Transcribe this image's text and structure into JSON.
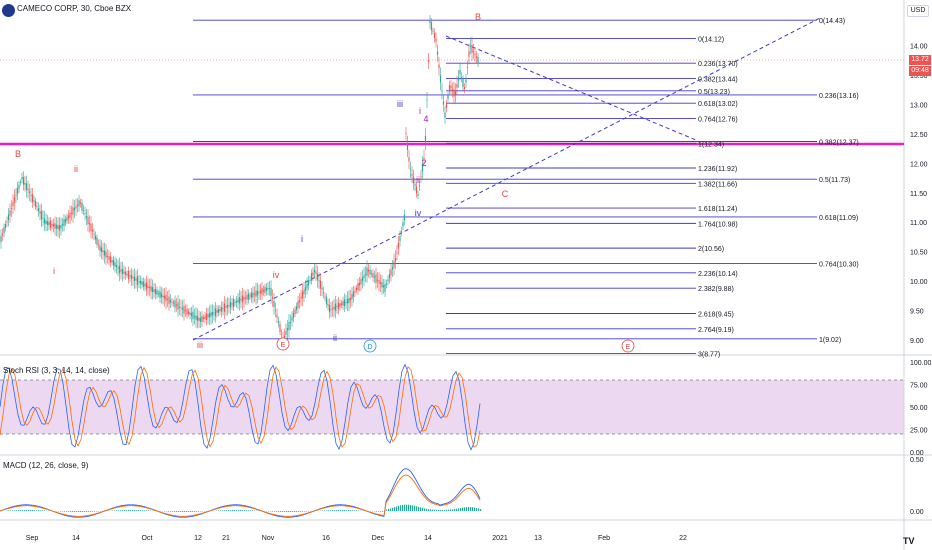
{
  "header": {
    "title": "CAMECO CORP, 30, Cboe BZX",
    "currency": "USD"
  },
  "price_axis": {
    "ticks": [
      "14.00",
      "13.50",
      "13.00",
      "12.50",
      "12.00",
      "11.50",
      "11.00",
      "10.50",
      "10.00",
      "9.50",
      "9.00"
    ],
    "last_price": "13.72",
    "countdown": "09:48"
  },
  "time_axis": {
    "labels": [
      "Sep",
      "14",
      "Oct",
      "12",
      "21",
      "Nov",
      "16",
      "Dec",
      "14",
      "2021",
      "13",
      "Feb",
      "22"
    ]
  },
  "indicators": {
    "stoch_rsi": {
      "label": "Stoch RSI (3, 3, 14, 14, close)",
      "ticks": [
        "100.00",
        "75.00",
        "50.00",
        "25.00",
        "0.00"
      ],
      "band": [
        20,
        80
      ]
    },
    "macd": {
      "label": "MACD (12, 26, close, 9)",
      "ticks": [
        "0.50",
        "0.00"
      ]
    }
  },
  "fib_short": [
    {
      "text": "0(14.12)",
      "price": 14.12
    },
    {
      "text": "0.236(13.70)",
      "price": 13.7
    },
    {
      "text": "0.382(13.44)",
      "price": 13.44
    },
    {
      "text": "0.5(13.23)",
      "price": 13.23
    },
    {
      "text": "0.618(13.02)",
      "price": 13.02
    },
    {
      "text": "0.764(12.76)",
      "price": 12.76
    },
    {
      "text": "1(12.34)",
      "price": 12.34
    },
    {
      "text": "1.236(11.92)",
      "price": 11.92
    },
    {
      "text": "1.382(11.66)",
      "price": 11.66
    },
    {
      "text": "1.618(11.24)",
      "price": 11.24
    },
    {
      "text": "1.764(10.98)",
      "price": 10.98
    },
    {
      "text": "2(10.56)",
      "price": 10.56
    },
    {
      "text": "2.236(10.14)",
      "price": 10.14
    },
    {
      "text": "2.382(9.88)",
      "price": 9.88
    },
    {
      "text": "2.618(9.45)",
      "price": 9.45
    },
    {
      "text": "2.764(9.19)",
      "price": 9.19
    },
    {
      "text": "3(8.77)",
      "price": 8.77
    }
  ],
  "fib_long": [
    {
      "text": "0(14.43)",
      "price": 14.43
    },
    {
      "text": "0.236(13.16)",
      "price": 13.16
    },
    {
      "text": "0.382(12.37)",
      "price": 12.37
    },
    {
      "text": "0.5(11.73)",
      "price": 11.73
    },
    {
      "text": "0.618(11.09)",
      "price": 11.09
    },
    {
      "text": "0.764(10.30)",
      "price": 10.3
    },
    {
      "text": "1(9.02)",
      "price": 9.02
    }
  ],
  "wave_labels": [
    {
      "text": "B",
      "color": "#e0463c"
    },
    {
      "text": "ii",
      "color": "#e0463c"
    },
    {
      "text": "i",
      "color": "#e0463c"
    },
    {
      "text": "iii",
      "color": "#e0463c"
    },
    {
      "text": "iv",
      "color": "#e0463c"
    },
    {
      "text": "E",
      "color": "#e0463c"
    },
    {
      "text": "i",
      "color": "#3f37c9"
    },
    {
      "text": "ii",
      "color": "#3f37c9"
    },
    {
      "text": "D",
      "color": "#1e88e5"
    },
    {
      "text": "iii",
      "color": "#3f37c9"
    },
    {
      "text": "iv",
      "color": "#3f37c9"
    },
    {
      "text": "i",
      "color": "#9c27b0"
    },
    {
      "text": "ii",
      "color": "#9c27b0"
    },
    {
      "text": "2",
      "color": "#9c27b0"
    },
    {
      "text": "4",
      "color": "#9c27b0"
    },
    {
      "text": "B",
      "color": "#e0463c"
    },
    {
      "text": "C",
      "color": "#e0463c"
    },
    {
      "text": "E",
      "color": "#e0463c"
    }
  ],
  "colors": {
    "fib_line": "#3f37c9",
    "magenta_level": "#e91ec3",
    "up_candle": "#26a69a",
    "down_candle": "#ef5350",
    "band_fill": "#e1bee7",
    "stoch_k": "#2962ff",
    "stoch_d": "#ff6d00",
    "last_price_tag": "#ef5350"
  }
}
